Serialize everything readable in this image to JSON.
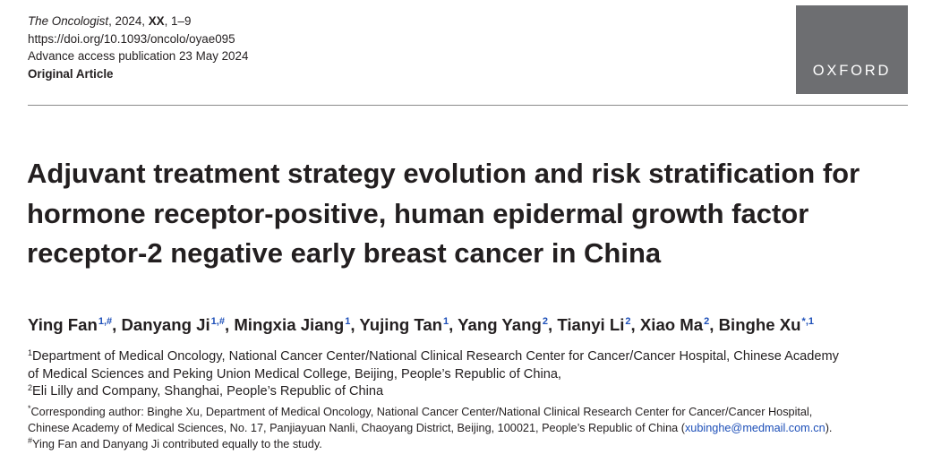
{
  "header": {
    "journal_name": "The Oncologist",
    "year": ", 2024, ",
    "volume": "XX",
    "pages": ", 1–9",
    "doi": "https://doi.org/10.1093/oncolo/oyae095",
    "publication_note": "Advance access publication 23 May 2024",
    "article_type": "Original Article",
    "publisher_logo_text": "OXFORD"
  },
  "title": "Adjuvant treatment strategy evolution and risk stratification for hormone receptor-positive, human epidermal growth factor receptor-2 negative early breast cancer in China",
  "authors": [
    {
      "name": "Ying Fan",
      "marks": "1,#",
      "sep": ", "
    },
    {
      "name": "Danyang Ji",
      "marks": "1,#",
      "sep": ", "
    },
    {
      "name": "Mingxia Jiang",
      "marks": "1",
      "sep": ", "
    },
    {
      "name": "Yujing Tan",
      "marks": "1",
      "sep": ", "
    },
    {
      "name": "Yang Yang",
      "marks": "2",
      "sep": ", "
    },
    {
      "name": "Tianyi Li",
      "marks": "2",
      "sep": ", "
    },
    {
      "name": "Xiao Ma",
      "marks": "2",
      "sep": ", "
    },
    {
      "name": "Binghe Xu",
      "marks": "*,1",
      "sep": ""
    }
  ],
  "affiliations": [
    {
      "marker": "1",
      "line1": "Department of Medical Oncology, National Cancer Center/National Clinical Research Center for Cancer/Cancer Hospital, Chinese Academy",
      "line2": "of Medical Sciences and Peking Union Medical College, Beijing, People’s Republic of China,"
    },
    {
      "marker": "2",
      "line1": "Eli Lilly and Company, Shanghai, People’s Republic of China"
    }
  ],
  "notes": {
    "corresponding_marker": "*",
    "corresponding_line1": "Corresponding author: Binghe Xu, Department of Medical Oncology, National Cancer Center/National Clinical Research Center for Cancer/Cancer Hospital,",
    "corresponding_line2": "Chinese Academy of Medical Sciences, No. 17, Panjiayuan Nanli, Chaoyang District, Beijing, 100021, People’s Republic of China (",
    "email": "xubinghe@medmail.com.cn",
    "corresponding_end": ").",
    "equal_marker": "#",
    "equal_contribution": "Ying Fan and Danyang Ji contributed equally to the study."
  },
  "colors": {
    "link_blue": "#1d4fb8",
    "logo_gray": "#6d6e71",
    "text": "#231f20"
  }
}
